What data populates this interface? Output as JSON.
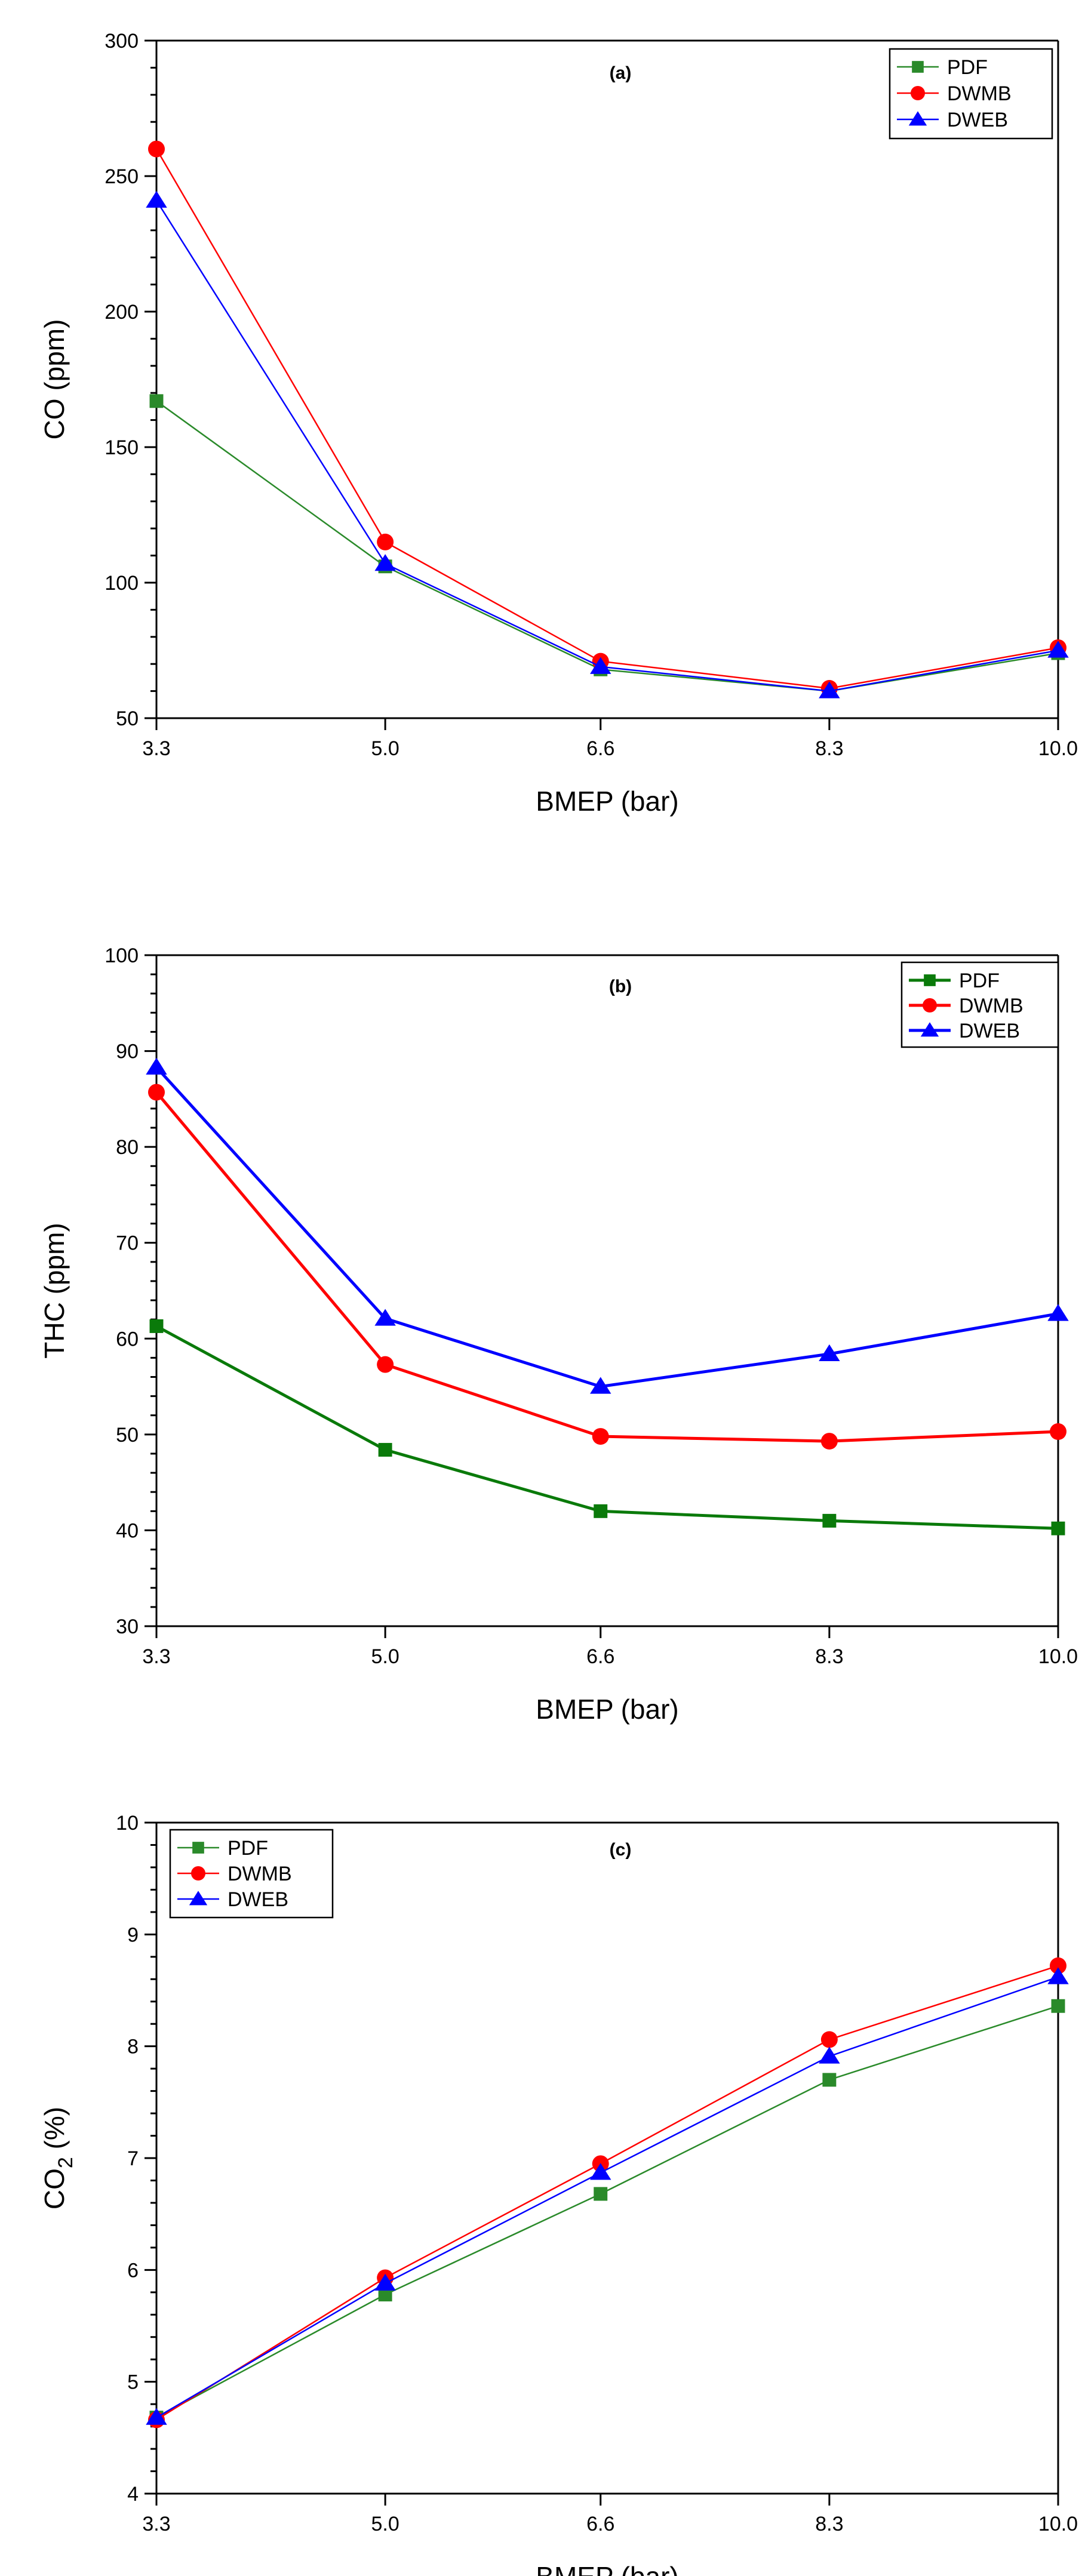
{
  "chart_data": [
    {
      "type": "line",
      "panel_label": "(a)",
      "xlabel": "BMEP (bar)",
      "ylabel": "CO (ppm)",
      "ylabel_sub": "",
      "ylabel_suffix": "",
      "categories": [
        "3.3",
        "5.0",
        "6.6",
        "8.3",
        "10.0"
      ],
      "x": [
        3.3,
        5.0,
        6.6,
        8.3,
        10.0
      ],
      "xlim": [
        3.3,
        10.0
      ],
      "ylim": [
        50,
        300
      ],
      "yticks": [
        50,
        100,
        150,
        200,
        250,
        300
      ],
      "legend_position": "top-right",
      "series": [
        {
          "name": "PDF",
          "color": "#2a8a2a",
          "marker": "square",
          "values": [
            167,
            106,
            68,
            60,
            74
          ]
        },
        {
          "name": "DWMB",
          "color": "#ff0000",
          "marker": "circle",
          "values": [
            260,
            115,
            71,
            61,
            76
          ]
        },
        {
          "name": "DWEB",
          "color": "#0000ff",
          "marker": "triangle",
          "values": [
            241,
            107,
            69,
            60,
            75
          ]
        }
      ]
    },
    {
      "type": "line",
      "panel_label": "(b)",
      "xlabel": "BMEP (bar)",
      "ylabel": "THC  (ppm)",
      "ylabel_sub": "",
      "ylabel_suffix": "",
      "categories": [
        "3.3",
        "5.0",
        "6.6",
        "8.3",
        "10.0"
      ],
      "x": [
        3.3,
        5.0,
        6.6,
        8.3,
        10.0
      ],
      "xlim": [
        3.3,
        10.0
      ],
      "ylim": [
        30,
        100
      ],
      "yticks": [
        30,
        40,
        50,
        60,
        70,
        80,
        90,
        100
      ],
      "legend_position": "top-right",
      "series": [
        {
          "name": "PDF",
          "color": "#0a7a0a",
          "marker": "square",
          "values": [
            61.3,
            48.4,
            42.0,
            41.0,
            40.2
          ]
        },
        {
          "name": "DWMB",
          "color": "#ff0000",
          "marker": "circle",
          "values": [
            85.7,
            57.3,
            49.8,
            49.3,
            50.3
          ]
        },
        {
          "name": "DWEB",
          "color": "#0000ff",
          "marker": "triangle",
          "values": [
            88.3,
            62.1,
            55.0,
            58.4,
            62.6
          ]
        }
      ]
    },
    {
      "type": "line",
      "panel_label": "(c)",
      "xlabel": "BMEP (bar)",
      "ylabel": "CO",
      "ylabel_sub": "2",
      "ylabel_suffix": "  (%)",
      "categories": [
        "3.3",
        "5.0",
        "6.6",
        "8.3",
        "10.0"
      ],
      "x": [
        3.3,
        5.0,
        6.6,
        8.3,
        10.0
      ],
      "xlim": [
        3.3,
        10.0
      ],
      "ylim": [
        4,
        10
      ],
      "yticks": [
        4,
        5,
        6,
        7,
        8,
        9,
        10
      ],
      "legend_position": "top-left",
      "series": [
        {
          "name": "PDF",
          "color": "#2a8a2a",
          "marker": "square",
          "values": [
            4.68,
            5.78,
            6.68,
            7.7,
            8.36
          ]
        },
        {
          "name": "DWMB",
          "color": "#ff0000",
          "marker": "circle",
          "values": [
            4.66,
            5.93,
            6.95,
            8.06,
            8.72
          ]
        },
        {
          "name": "DWEB",
          "color": "#0000ff",
          "marker": "triangle",
          "values": [
            4.68,
            5.88,
            6.87,
            7.91,
            8.62
          ]
        }
      ]
    }
  ]
}
